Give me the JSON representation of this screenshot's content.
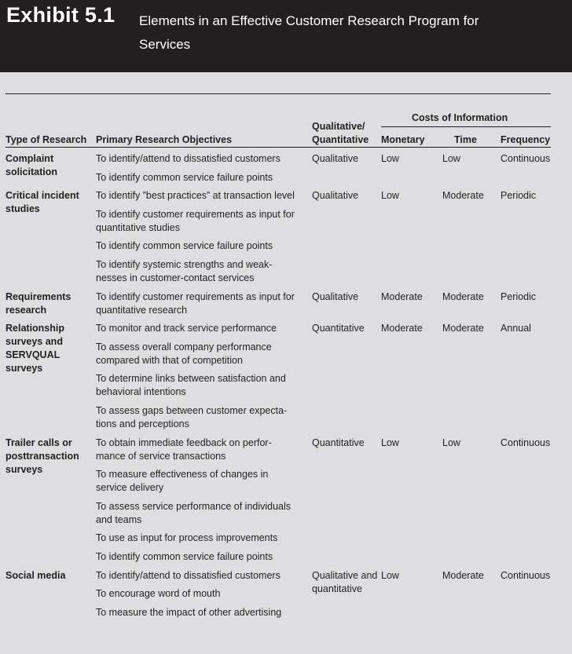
{
  "exhibit": {
    "label": "Exhibit 5.1",
    "title": "Elements in an Effective Customer Research Program for Services"
  },
  "table": {
    "headers": {
      "type": "Type of Research",
      "objectives": "Primary Research Objectives",
      "qual": "Qualitative/ Quantitative",
      "costs": "Costs of Information",
      "monetary": "Monetary",
      "time": "Time",
      "frequency": "Frequency"
    },
    "rows": [
      {
        "type": "Complaint solicitation",
        "objectives": [
          "To identify/attend to dissatisfied customers",
          "To identify common service failure points"
        ],
        "qual": "Qualitative",
        "monetary": "Low",
        "time": "Low",
        "frequency": "Continuous"
      },
      {
        "type": "Critical incident studies",
        "objectives": [
          "To identify ”best practices” at transaction level",
          "To identify customer requirements as input for quantitative studies",
          "To identify common service failure points",
          "To identify systemic strengths and weak-nesses in customer-contact services"
        ],
        "qual": "Qualitative",
        "monetary": "Low",
        "time": "Moderate",
        "frequency": "Periodic"
      },
      {
        "type": "Requirements research",
        "objectives": [
          "To identify customer requirements as input for quantitative research"
        ],
        "qual": "Qualitative",
        "monetary": "Moderate",
        "time": "Moderate",
        "frequency": "Periodic"
      },
      {
        "type": "Relationship surveys and SERVQUAL surveys",
        "objectives": [
          "To monitor and track service performance",
          "To assess overall company performance compared with that of competition",
          "To determine links between satisfaction and behavioral intentions",
          "To assess gaps between customer expecta-tions and perceptions"
        ],
        "qual": "Quantitative",
        "monetary": "Moderate",
        "time": "Moderate",
        "frequency": "Annual"
      },
      {
        "type": "Trailer calls or posttransaction surveys",
        "objectives": [
          "To obtain immediate feedback on perfor-mance of service transactions",
          "To measure effectiveness of changes in service delivery",
          "To assess service performance of individuals and teams",
          "To use as input for process improvements",
          "To identify common service failure points"
        ],
        "qual": "Quantitative",
        "monetary": "Low",
        "time": "Low",
        "frequency": "Continuous"
      },
      {
        "type": "Social media",
        "objectives": [
          "To identify/attend to dissatisfied customers",
          "To encourage word of mouth",
          "To measure the impact of other advertising"
        ],
        "qual": "Qualitative and quantitative",
        "monetary": "Low",
        "time": "Moderate",
        "frequency": "Continuous"
      }
    ]
  }
}
